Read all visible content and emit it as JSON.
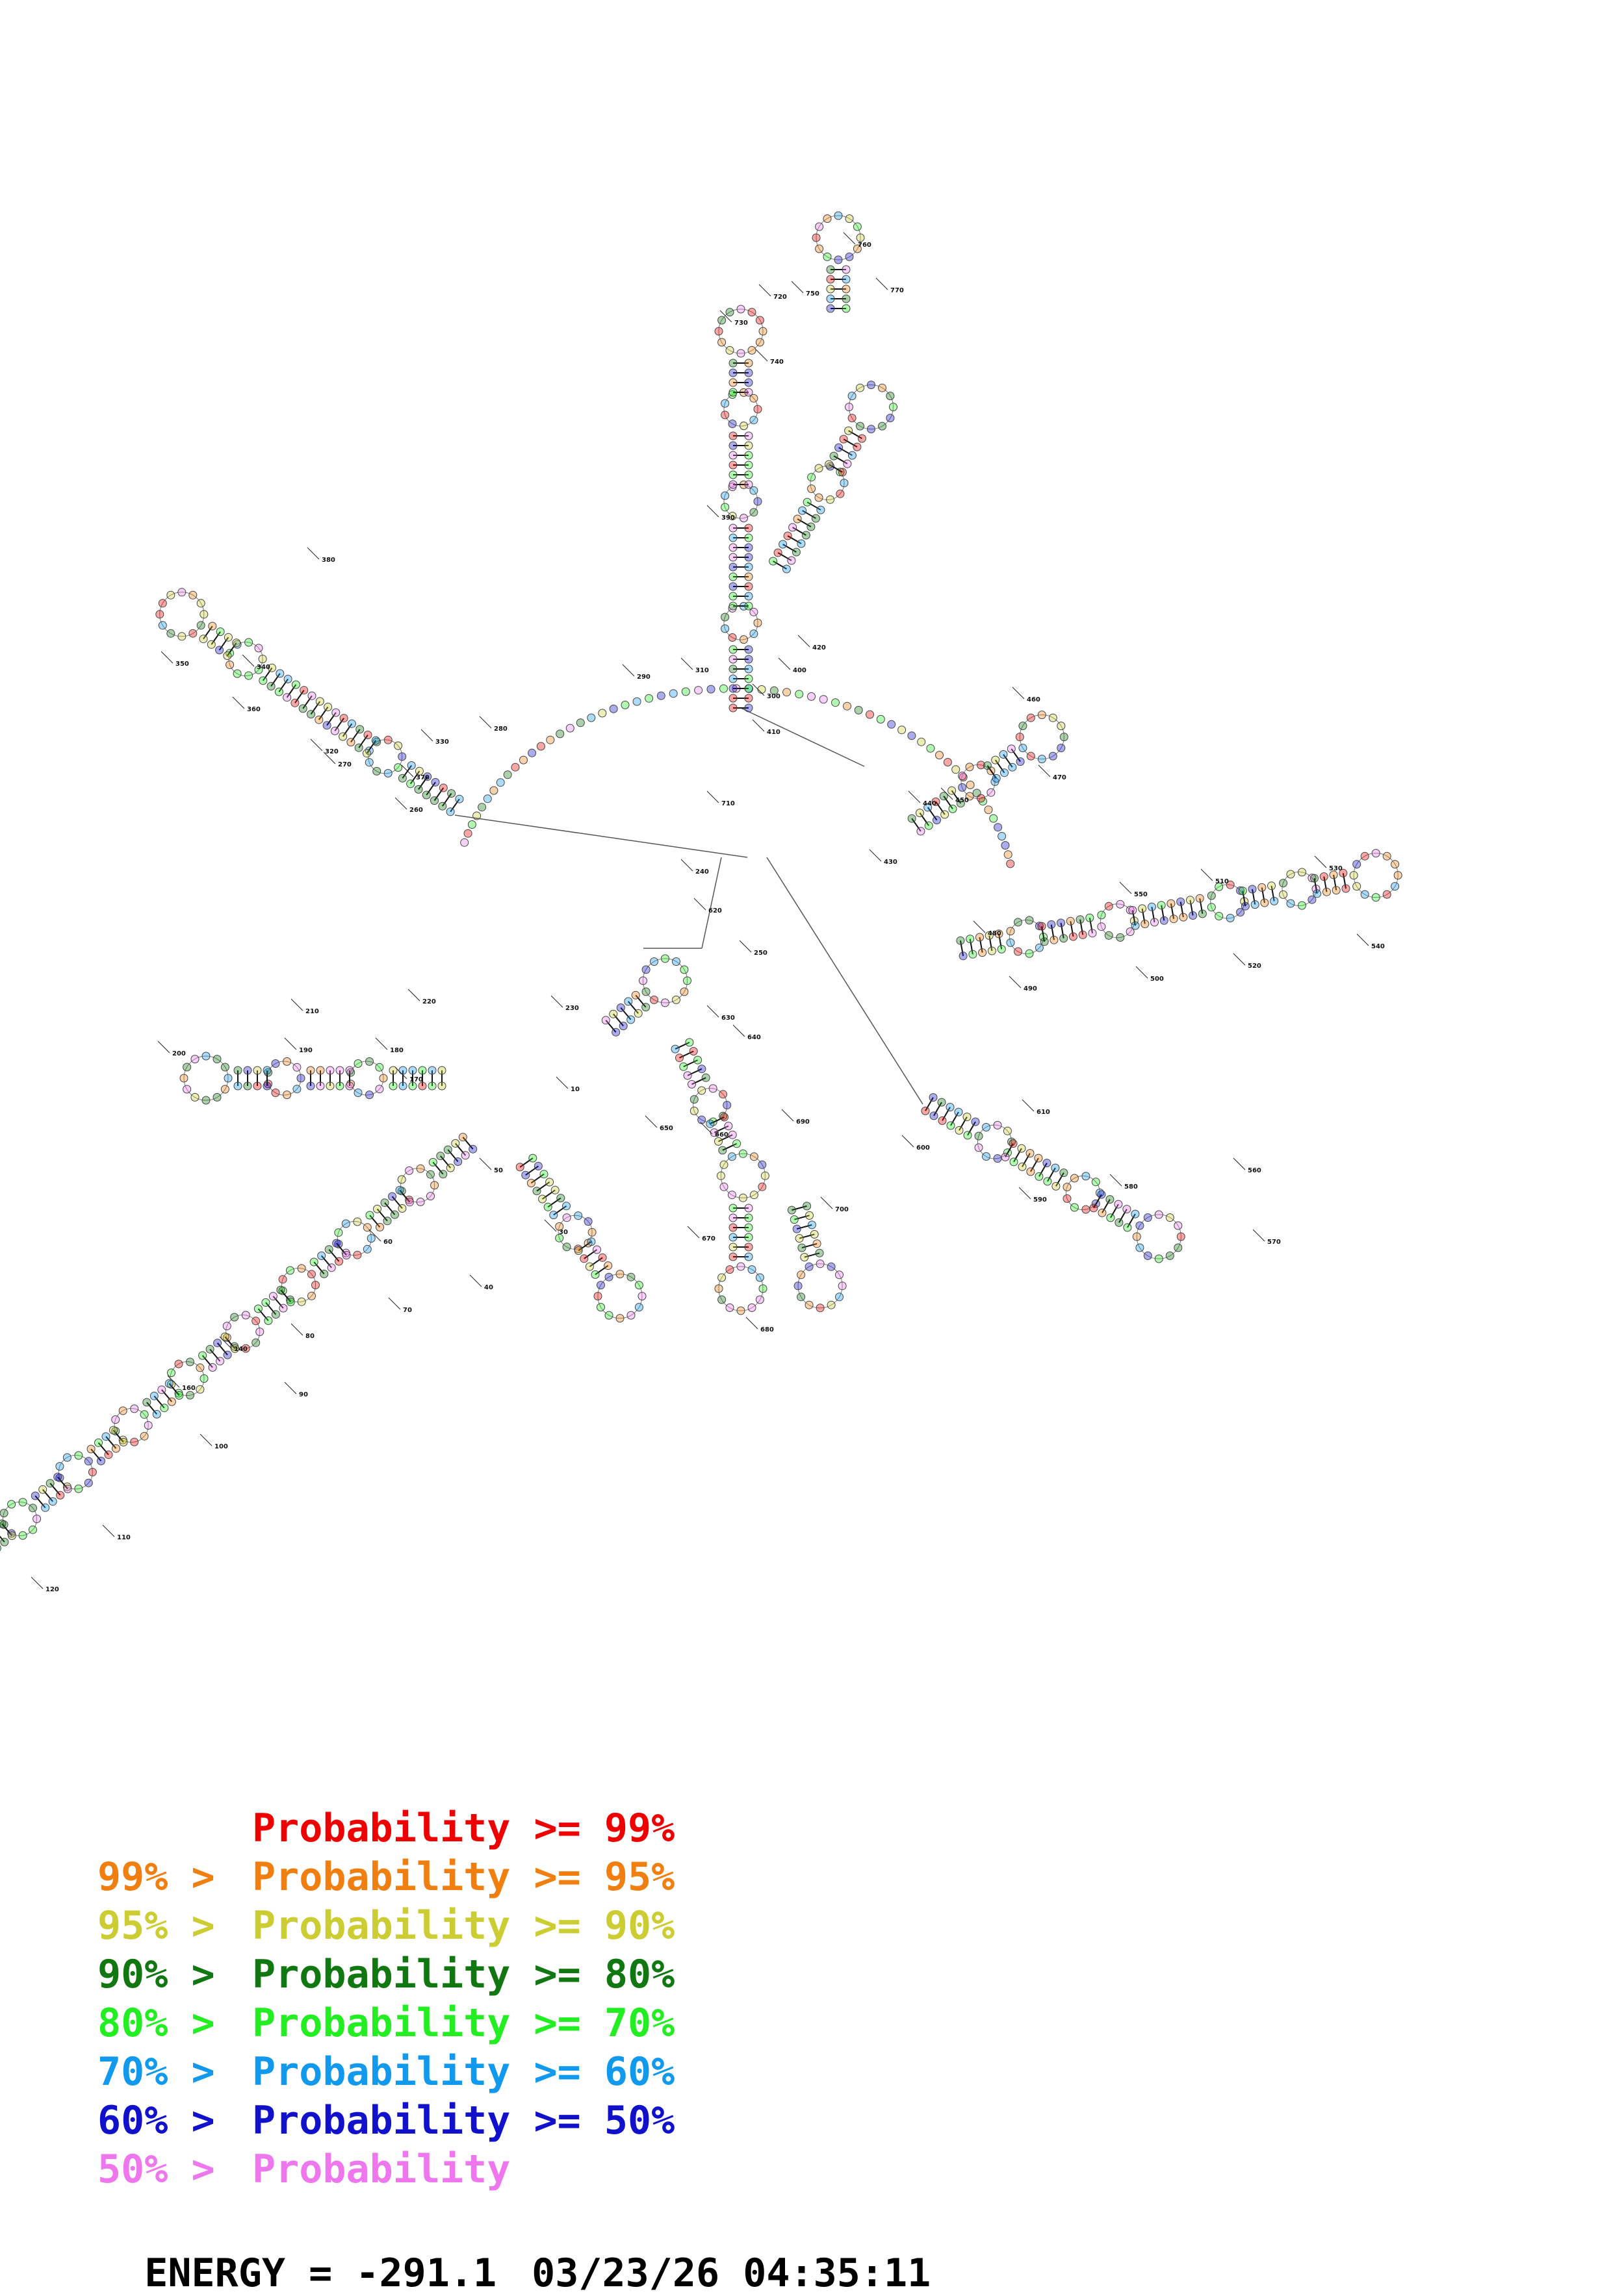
{
  "legend": [
    {
      "lead": "",
      "text": "Probability >= 99%",
      "color": "#ee0000"
    },
    {
      "lead": "99% >",
      "text": "Probability >= 95%",
      "color": "#f07f10"
    },
    {
      "lead": "95% >",
      "text": "Probability >= 90%",
      "color": "#cccc33"
    },
    {
      "lead": "90% >",
      "text": "Probability >= 80%",
      "color": "#117711"
    },
    {
      "lead": "80% >",
      "text": "Probability >= 70%",
      "color": "#22ee22"
    },
    {
      "lead": "70% >",
      "text": "Probability >= 60%",
      "color": "#1199ee"
    },
    {
      "lead": "60% >",
      "text": "Probability >= 50%",
      "color": "#1111cc"
    },
    {
      "lead": "50% >",
      "text": "Probability",
      "color": "#ee77ee"
    }
  ],
  "footer": {
    "energy": "ENERGY = -291.1",
    "timestamp": "03/23/26 04:35:11"
  },
  "position_labels": [
    "10",
    "30",
    "40",
    "50",
    "60",
    "70",
    "80",
    "90",
    "100",
    "110",
    "120",
    "140",
    "160",
    "170",
    "180",
    "190",
    "200",
    "210",
    "220",
    "230",
    "240",
    "250",
    "260",
    "270",
    "280",
    "290",
    "300",
    "310",
    "320",
    "330",
    "340",
    "350",
    "360",
    "370",
    "380",
    "390",
    "400",
    "410",
    "420",
    "430",
    "440",
    "450",
    "460",
    "470",
    "480",
    "490",
    "500",
    "510",
    "520",
    "530",
    "540",
    "550",
    "560",
    "570",
    "580",
    "590",
    "600",
    "610",
    "620",
    "630",
    "640",
    "650",
    "660",
    "670",
    "680",
    "690",
    "700",
    "710",
    "720",
    "730",
    "740",
    "750",
    "760",
    "770"
  ]
}
